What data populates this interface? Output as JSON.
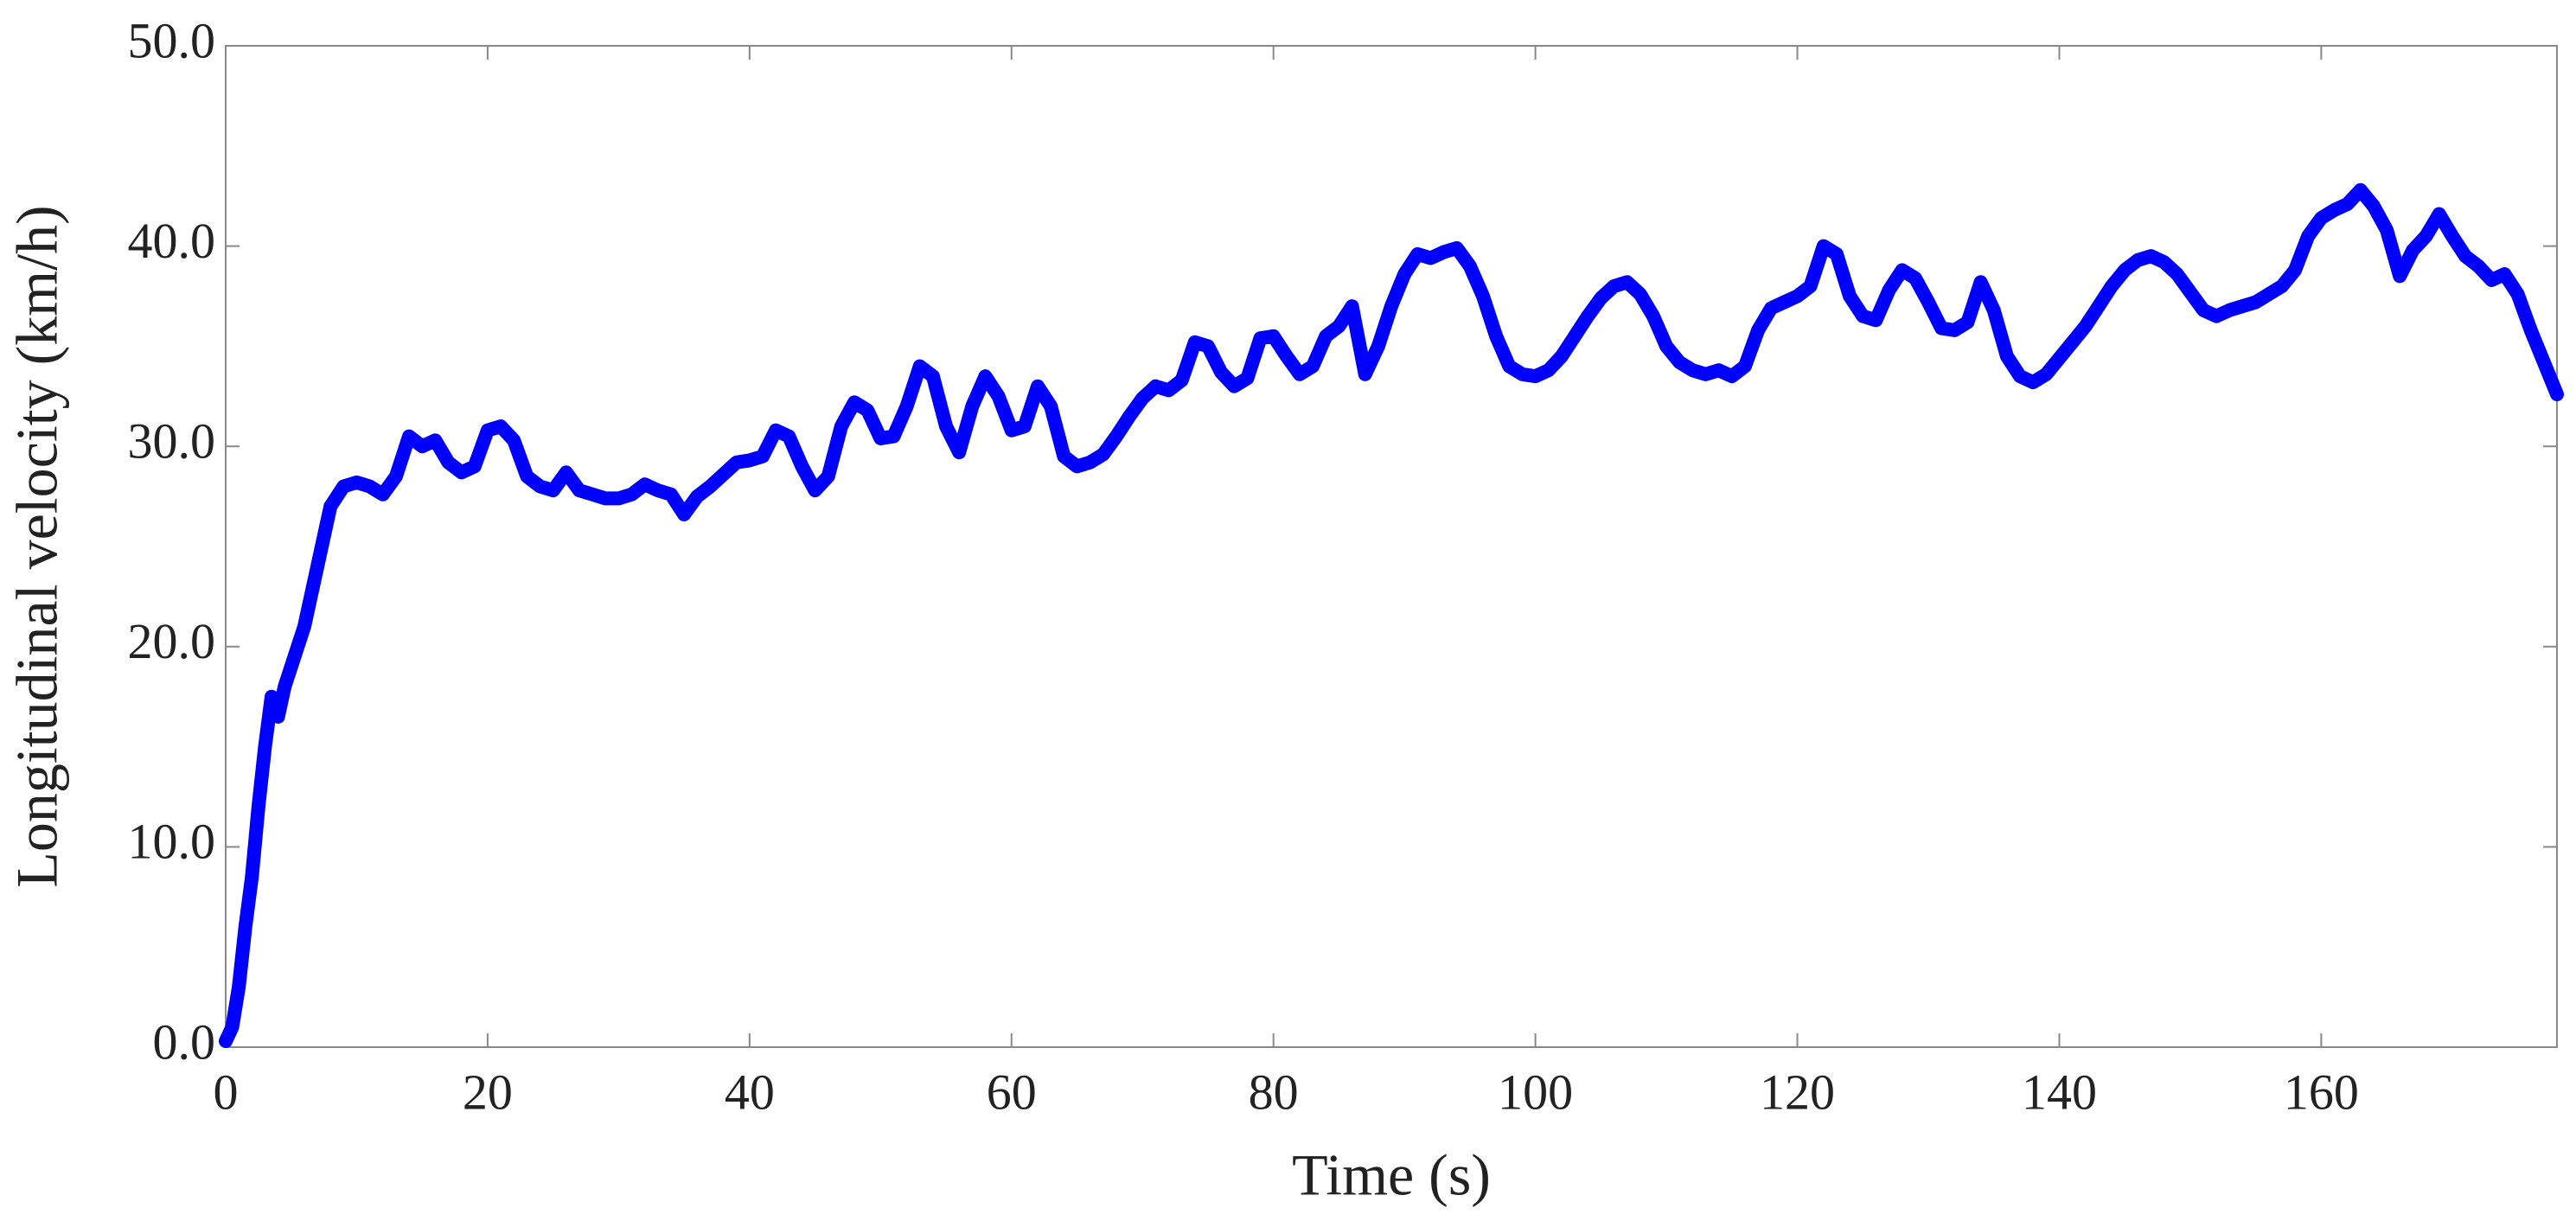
{
  "chart_data": {
    "type": "line",
    "xlabel": "Time (s)",
    "ylabel": "Longitudinal velocity (km/h)",
    "xlim": [
      0,
      178
    ],
    "ylim": [
      0,
      50
    ],
    "xticks": [
      0,
      20,
      40,
      60,
      80,
      100,
      120,
      140,
      160
    ],
    "yticks": [
      {
        "value": 0,
        "label": "0.0"
      },
      {
        "value": 10,
        "label": "10.0"
      },
      {
        "value": 20,
        "label": "20.0"
      },
      {
        "value": 30,
        "label": "30.0"
      },
      {
        "value": 40,
        "label": "40.0"
      },
      {
        "value": 50,
        "label": "50.0"
      }
    ],
    "x": [
      0,
      0.5,
      1,
      1.5,
      2,
      2.5,
      3,
      3.5,
      4,
      4.5,
      5,
      6,
      7,
      8,
      9,
      10,
      11,
      12,
      13,
      14,
      15,
      16,
      17,
      18,
      19,
      20,
      21,
      22,
      23,
      24,
      25,
      26,
      27,
      28,
      29,
      30,
      31,
      32,
      33,
      34,
      35,
      36,
      37,
      38,
      39,
      40,
      41,
      42,
      43,
      44,
      45,
      46,
      47,
      48,
      49,
      50,
      51,
      52,
      53,
      54,
      55,
      56,
      57,
      58,
      59,
      60,
      61,
      62,
      63,
      64,
      65,
      66,
      67,
      68,
      69,
      70,
      71,
      72,
      73,
      74,
      75,
      76,
      77,
      78,
      79,
      80,
      81,
      82,
      83,
      84,
      85,
      86,
      87,
      88,
      89,
      90,
      91,
      92,
      93,
      94,
      95,
      96,
      97,
      98,
      99,
      100,
      101,
      102,
      103,
      104,
      105,
      106,
      107,
      108,
      109,
      110,
      111,
      112,
      113,
      114,
      115,
      116,
      117,
      118,
      119,
      120,
      121,
      122,
      123,
      124,
      125,
      126,
      127,
      128,
      129,
      130,
      131,
      132,
      133,
      134,
      135,
      136,
      137,
      138,
      139,
      140,
      141,
      142,
      143,
      144,
      145,
      146,
      147,
      148,
      149,
      150,
      151,
      152,
      153,
      154,
      155,
      156,
      157,
      158,
      159,
      160,
      161,
      162,
      163,
      164,
      165,
      166,
      167,
      168,
      169,
      170,
      171,
      172,
      173,
      174,
      175,
      176,
      177,
      178
    ],
    "series": [
      {
        "color": "#0000ff",
        "values": [
          0.3,
          1,
          3,
          6,
          8.5,
          12,
          15,
          17.5,
          16.5,
          18,
          19,
          21,
          24,
          27,
          28,
          28.2,
          28,
          27.6,
          28.5,
          30.5,
          30,
          30.3,
          29.2,
          28.7,
          29,
          30.8,
          31,
          30.3,
          28.5,
          28,
          27.8,
          28.7,
          27.8,
          27.6,
          27.4,
          27.4,
          27.6,
          28.1,
          27.8,
          27.6,
          26.6,
          27.5,
          28,
          28.6,
          29.2,
          29.3,
          29.5,
          30.8,
          30.5,
          29,
          27.8,
          28.5,
          31,
          32.2,
          31.8,
          30.4,
          30.5,
          32,
          34,
          33.5,
          31,
          29.7,
          32,
          33.5,
          32.5,
          30.8,
          31,
          33,
          32,
          29.5,
          29,
          29.2,
          29.6,
          30.5,
          31.5,
          32.4,
          33,
          32.8,
          33.3,
          35.2,
          35,
          33.7,
          33,
          33.4,
          35.4,
          35.5,
          34.5,
          33.6,
          34,
          35.5,
          36,
          37,
          33.6,
          35,
          37,
          38.6,
          39.6,
          39.4,
          39.7,
          39.9,
          39,
          37.5,
          35.5,
          34,
          33.6,
          33.5,
          33.8,
          34.5,
          35.5,
          36.5,
          37.4,
          38,
          38.2,
          37.6,
          36.5,
          35,
          34.2,
          33.8,
          33.6,
          33.8,
          33.5,
          34,
          35.8,
          36.9,
          37.2,
          37.5,
          38,
          40,
          39.6,
          37.5,
          36.5,
          36.3,
          37.8,
          38.8,
          38.4,
          37.2,
          35.9,
          35.8,
          36.2,
          38.2,
          36.8,
          34.5,
          33.5,
          33.2,
          33.6,
          34.4,
          35.2,
          36,
          37,
          38,
          38.8,
          39.3,
          39.5,
          39.2,
          38.6,
          37.7,
          36.8,
          36.5,
          36.8,
          37,
          37.2,
          37.6,
          38,
          38.8,
          40.5,
          41.4,
          41.8,
          42.1,
          42.8,
          42,
          40.8,
          38.5,
          39.8,
          40.5,
          41.6,
          40.5,
          39.5,
          39,
          38.3,
          38.6,
          37.6,
          35.8,
          34.2,
          32.6
        ]
      }
    ]
  }
}
